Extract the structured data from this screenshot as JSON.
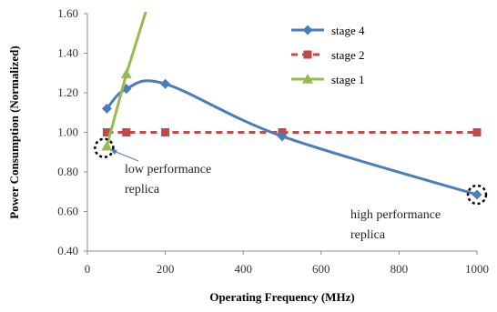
{
  "chart_data": {
    "type": "line",
    "xlabel": "Operating Frequency (MHz)",
    "ylabel": "Power Consumption (Normalized)",
    "xlim": [
      0,
      1000
    ],
    "ylim": [
      0.4,
      1.6
    ],
    "xticks": [
      "0",
      "200",
      "400",
      "600",
      "800",
      "1000"
    ],
    "yticks": [
      "0.40",
      "0.60",
      "0.80",
      "1.00",
      "1.20",
      "1.40",
      "1.60"
    ],
    "grid": false,
    "legend_position": "top-right",
    "series": [
      {
        "name": "stage 4",
        "color": "#4A7EBB",
        "marker": "diamond",
        "smooth": true,
        "x": [
          50,
          100,
          200,
          500,
          1000
        ],
        "y": [
          1.12,
          1.22,
          1.245,
          0.98,
          0.685
        ]
      },
      {
        "name": "stage 2",
        "color": "#BE4B48",
        "marker": "square",
        "dashed": true,
        "x": [
          50,
          100,
          200,
          500,
          1000
        ],
        "y": [
          1.0,
          1.0,
          1.0,
          1.0,
          1.0
        ]
      },
      {
        "name": "stage 1",
        "color": "#98B954",
        "marker": "triangle",
        "x": [
          50,
          100,
          150
        ],
        "y": [
          0.93,
          1.295,
          1.61
        ]
      }
    ],
    "annotations": [
      {
        "lines": [
          "low performance",
          "replica"
        ]
      },
      {
        "lines": [
          "high performance",
          "replica"
        ]
      }
    ]
  }
}
